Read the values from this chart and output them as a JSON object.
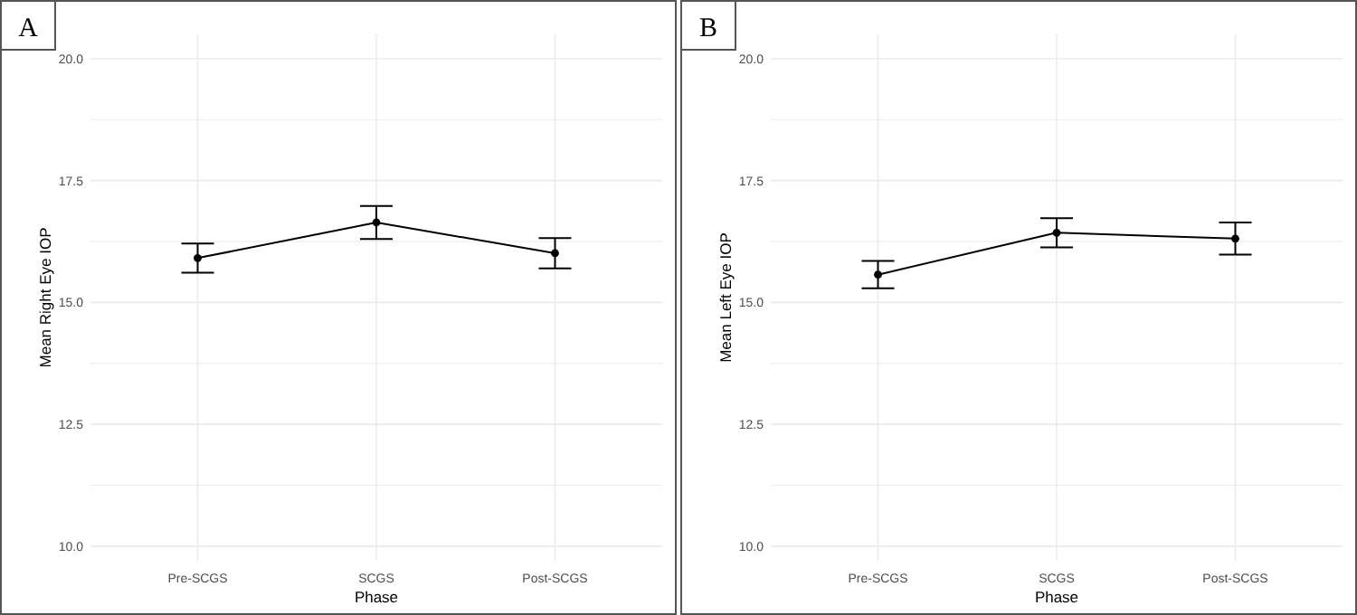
{
  "chart_data": [
    {
      "type": "line",
      "title": "A",
      "xlabel": "Phase",
      "ylabel": "Mean Right Eye IOP",
      "categories": [
        "Pre-SCGS",
        "SCGS",
        "Post-SCGS"
      ],
      "series": [
        {
          "color": "#000000",
          "values": [
            15.91,
            16.64,
            16.01
          ],
          "errors": [
            0.3,
            0.34,
            0.31
          ]
        }
      ],
      "ylim": [
        9.7,
        20.5
      ],
      "yticks": [
        {
          "value": 10,
          "label": "10.0"
        },
        {
          "value": 11.25,
          "label": null
        },
        {
          "value": 12.5,
          "label": "12.5"
        },
        {
          "value": 13.75,
          "label": null
        },
        {
          "value": 15,
          "label": "15.0"
        },
        {
          "value": 16.25,
          "label": null
        },
        {
          "value": 17.5,
          "label": "17.5"
        },
        {
          "value": 18.75,
          "label": null
        },
        {
          "value": 20,
          "label": "20.0"
        }
      ],
      "grid": true,
      "marker": "circle",
      "line_style": "solid"
    },
    {
      "type": "line",
      "title": "B",
      "xlabel": "Phase",
      "ylabel": "Mean Left Eye IOP",
      "categories": [
        "Pre-SCGS",
        "SCGS",
        "Post-SCGS"
      ],
      "series": [
        {
          "color": "#000000",
          "values": [
            15.57,
            16.43,
            16.31
          ],
          "errors": [
            0.28,
            0.3,
            0.33
          ]
        }
      ],
      "ylim": [
        9.7,
        20.5
      ],
      "yticks": [
        {
          "value": 10,
          "label": "10.0"
        },
        {
          "value": 11.25,
          "label": null
        },
        {
          "value": 12.5,
          "label": "12.5"
        },
        {
          "value": 13.75,
          "label": null
        },
        {
          "value": 15,
          "label": "15.0"
        },
        {
          "value": 16.25,
          "label": null
        },
        {
          "value": 17.5,
          "label": "17.5"
        },
        {
          "value": 18.75,
          "label": null
        },
        {
          "value": 20,
          "label": "20.0"
        }
      ],
      "grid": true,
      "marker": "circle",
      "line_style": "solid"
    }
  ]
}
